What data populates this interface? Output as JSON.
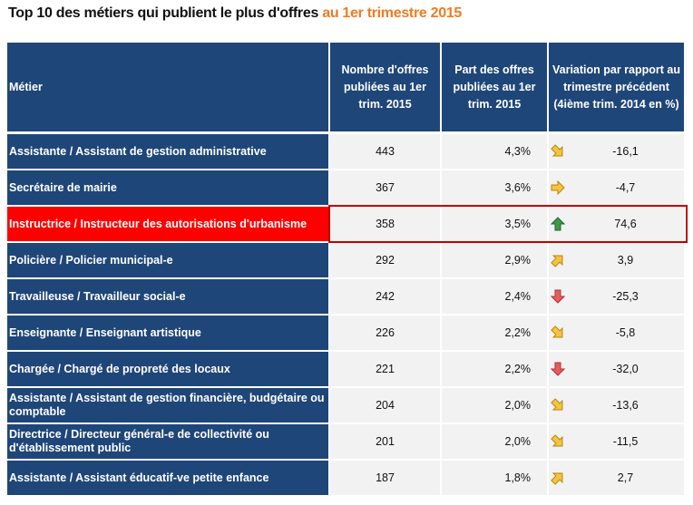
{
  "title": {
    "main": "Top 10 des métiers qui publient le plus d'offres",
    "highlight": "au 1er trimestre 2015"
  },
  "headers": [
    "Métier",
    "Nombre d'offres publiées au 1er trim. 2015",
    "Part des offres publiées au 1er trim. 2015",
    "Variation par rapport au trimestre précédent (4ième trim. 2014 en %)"
  ],
  "rows": [
    {
      "metier": "Assistante / Assistant de gestion administrative",
      "nombre": "443",
      "part": "4,3%",
      "trend": "down-right",
      "variation": "-16,1"
    },
    {
      "metier": "Secrétaire de mairie",
      "nombre": "367",
      "part": "3,6%",
      "trend": "right",
      "variation": "-4,7"
    },
    {
      "metier": "Instructrice / Instructeur des autorisations d'urbanisme",
      "nombre": "358",
      "part": "3,5%",
      "trend": "up",
      "variation": "74,6",
      "highlighted": true
    },
    {
      "metier": "Policière / Policier municipal-e",
      "nombre": "292",
      "part": "2,9%",
      "trend": "up-right",
      "variation": "3,9"
    },
    {
      "metier": "Travailleuse / Travailleur social-e",
      "nombre": "242",
      "part": "2,4%",
      "trend": "down",
      "variation": "-25,3"
    },
    {
      "metier": "Enseignante / Enseignant artistique",
      "nombre": "226",
      "part": "2,2%",
      "trend": "down-right",
      "variation": "-5,8"
    },
    {
      "metier": "Chargée / Chargé de propreté des locaux",
      "nombre": "221",
      "part": "2,2%",
      "trend": "down",
      "variation": "-32,0"
    },
    {
      "metier": "Assistante / Assistant de gestion financière, budgétaire ou comptable",
      "nombre": "204",
      "part": "2,0%",
      "trend": "down-right",
      "variation": "-13,6"
    },
    {
      "metier": "Directrice / Directeur général-e de collectivité ou d'établissement public",
      "nombre": "201",
      "part": "2,0%",
      "trend": "down-right",
      "variation": "-11,5"
    },
    {
      "metier": "Assistante / Assistant éducatif-ve petite enfance",
      "nombre": "187",
      "part": "1,8%",
      "trend": "up-right",
      "variation": "2,7"
    }
  ],
  "colors": {
    "header": "#1f4678",
    "highlight": "#ff0000",
    "accent": "#f07b22",
    "arrow_yellow": "#f5c242",
    "arrow_green": "#3c9a4a",
    "arrow_red": "#e85c5c"
  }
}
